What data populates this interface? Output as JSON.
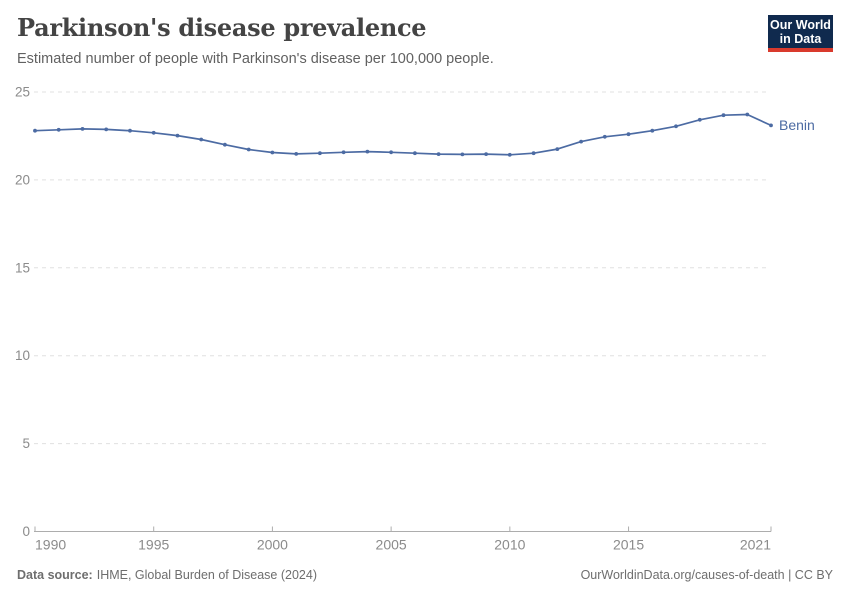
{
  "header": {
    "title": "Parkinson's disease prevalence",
    "subtitle": "Estimated number of people with Parkinson's disease per 100,000 people."
  },
  "logo": {
    "line1": "Our World",
    "line2": "in Data",
    "bg_color": "#102a4e",
    "accent_color": "#d93a2d"
  },
  "footer": {
    "label": "Data source:",
    "source": "IHME, Global Burden of Disease (2024)",
    "attribution": "OurWorldinData.org/causes-of-death | CC BY"
  },
  "chart_data": {
    "type": "line",
    "title": "Parkinson's disease prevalence",
    "subtitle": "Estimated number of people with Parkinson's disease per 100,000 people.",
    "xlabel": "",
    "ylabel": "",
    "xlim": [
      1990,
      2021
    ],
    "ylim": [
      0,
      25
    ],
    "x_ticks": [
      1990,
      1995,
      2000,
      2005,
      2010,
      2015,
      2021
    ],
    "y_ticks": [
      0,
      5,
      10,
      15,
      20,
      25
    ],
    "grid": "horizontal-dashed",
    "legend": "end-of-line-label",
    "series": [
      {
        "name": "Benin",
        "color": "#4c6ba3",
        "x": [
          1990,
          1991,
          1992,
          1993,
          1994,
          1995,
          1996,
          1997,
          1998,
          1999,
          2000,
          2001,
          2002,
          2003,
          2004,
          2005,
          2006,
          2007,
          2008,
          2009,
          2010,
          2011,
          2012,
          2013,
          2014,
          2015,
          2016,
          2017,
          2018,
          2019,
          2020,
          2021
        ],
        "values": [
          22.8,
          22.85,
          22.9,
          22.87,
          22.8,
          22.68,
          22.52,
          22.3,
          22.0,
          21.73,
          21.56,
          21.48,
          21.52,
          21.57,
          21.61,
          21.57,
          21.52,
          21.47,
          21.45,
          21.47,
          21.43,
          21.52,
          21.75,
          22.18,
          22.45,
          22.6,
          22.8,
          23.05,
          23.42,
          23.68,
          23.72,
          23.1
        ]
      }
    ],
    "colors": {
      "grid": "#e0e0e0",
      "axis": "#adadad",
      "tick_label": "#8b8b8b"
    }
  }
}
